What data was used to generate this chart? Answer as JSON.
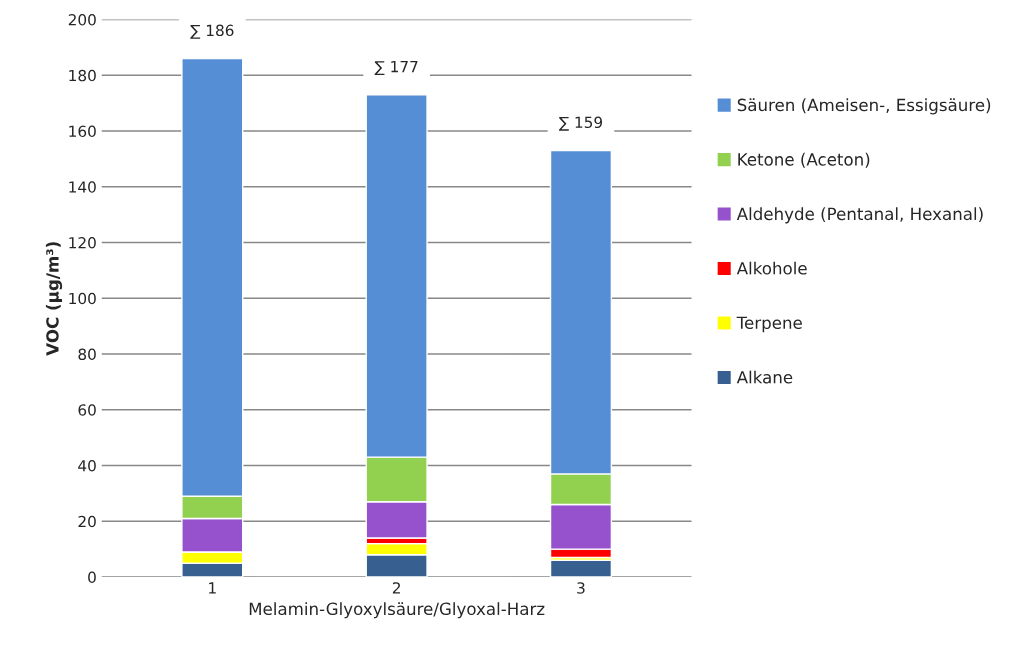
{
  "chart_data": {
    "type": "bar",
    "stacked": true,
    "xlabel": "Melamin-Glyoxylsäure/Glyoxal-Harz",
    "ylabel": "VOC (µg/m³)",
    "categories": [
      "1",
      "2",
      "3"
    ],
    "series": [
      {
        "name": "Alkane",
        "color": "#375f8f",
        "values": [
          5,
          8,
          6
        ]
      },
      {
        "name": "Terpene",
        "color": "#ffff00",
        "values": [
          4,
          4,
          1
        ]
      },
      {
        "name": "Alkohole",
        "color": "#ff0000",
        "values": [
          0,
          2,
          3
        ]
      },
      {
        "name": "Aldehyde (Pentanal, Hexanal)",
        "color": "#9651cd",
        "values": [
          12,
          13,
          16
        ]
      },
      {
        "name": "Ketone (Aceton)",
        "color": "#92d050",
        "values": [
          8,
          16,
          11
        ]
      },
      {
        "name": "Säuren (Ameisen-, Essigsäure)",
        "color": "#558ed5",
        "values": [
          157,
          130,
          116
        ]
      }
    ],
    "annotations": [
      {
        "text": "∑ 186",
        "x": "1",
        "y": 186
      },
      {
        "text": "∑ 177",
        "x": "2",
        "y": 173
      },
      {
        "text": "∑ 159",
        "x": "3",
        "y": 153
      }
    ],
    "ylim": [
      0,
      200
    ],
    "yticks": [
      0,
      20,
      40,
      60,
      80,
      100,
      120,
      140,
      160,
      180,
      200
    ],
    "grid": "y",
    "legend": "right"
  }
}
